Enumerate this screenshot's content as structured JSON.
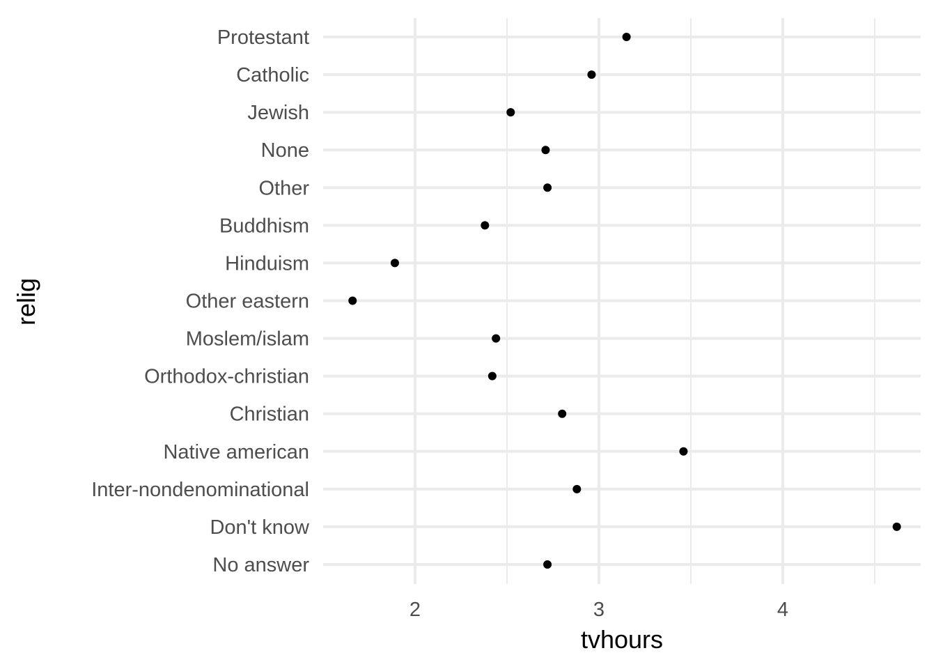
{
  "chart_data": {
    "type": "scatter",
    "title": "",
    "xlabel": "tvhours",
    "ylabel": "relig",
    "xlim": [
      1.5,
      4.75
    ],
    "xticks": [
      2,
      3,
      4
    ],
    "xtick_labels": [
      "2",
      "3",
      "4"
    ],
    "xminor": [
      2.5,
      3.5,
      4.5
    ],
    "grid": true,
    "legend": "none",
    "point_color": "#000000",
    "grid_color": "#ebebeb",
    "categories": [
      "Protestant",
      "Catholic",
      "Jewish",
      "None",
      "Other",
      "Buddhism",
      "Hinduism",
      "Other eastern",
      "Moslem/islam",
      "Orthodox-christian",
      "Christian",
      "Native american",
      "Inter-nondenominational",
      "Don't know",
      "No answer"
    ],
    "values": [
      3.15,
      2.96,
      2.52,
      2.71,
      2.72,
      2.38,
      1.89,
      1.66,
      2.44,
      2.42,
      2.8,
      3.46,
      2.88,
      4.62,
      2.72
    ]
  }
}
